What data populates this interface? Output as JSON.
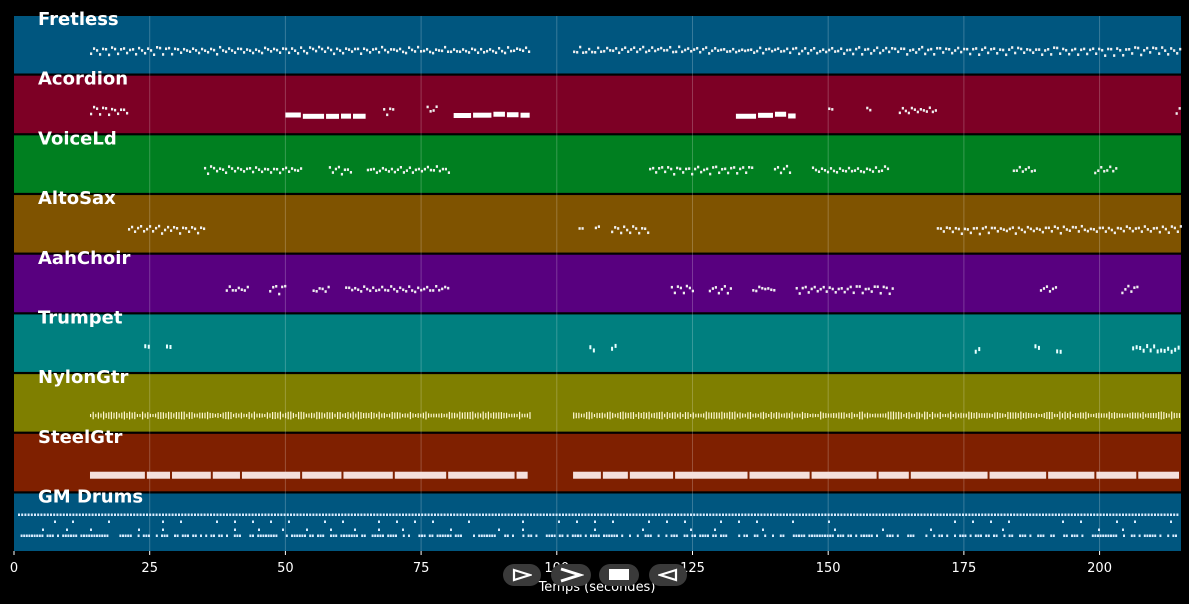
{
  "chart_data": {
    "type": "piano-roll",
    "xlabel": "Temps (secondes)",
    "xlim": [
      0,
      215
    ],
    "xticks": [
      0,
      25,
      50,
      75,
      100,
      125,
      150,
      175,
      200
    ],
    "grid": true,
    "tracks": [
      {
        "name": "Fretless",
        "color": "#00567f",
        "segments": [
          [
            14,
            95
          ],
          [
            103,
            215
          ]
        ],
        "style": "wavy"
      },
      {
        "name": "Acordion",
        "color": "#7d0025",
        "segments": [
          [
            14,
            21
          ],
          [
            50,
            65
          ],
          [
            68,
            70
          ],
          [
            76,
            78
          ],
          [
            81,
            95
          ],
          [
            133,
            144
          ],
          [
            150,
            151
          ],
          [
            157,
            158
          ],
          [
            163,
            170
          ],
          [
            214,
            215
          ]
        ],
        "style": "mixed"
      },
      {
        "name": "VoiceLd",
        "color": "#007f20",
        "segments": [
          [
            35,
            53
          ],
          [
            58,
            62
          ],
          [
            65,
            80
          ],
          [
            117,
            136
          ],
          [
            140,
            143
          ],
          [
            147,
            161
          ],
          [
            184,
            188
          ],
          [
            199,
            203
          ]
        ],
        "style": "wavy"
      },
      {
        "name": "AltoSax",
        "color": "#7f5300",
        "segments": [
          [
            21,
            35
          ],
          [
            104,
            105
          ],
          [
            107,
            108
          ],
          [
            110,
            117
          ],
          [
            170,
            215
          ]
        ],
        "style": "wavy"
      },
      {
        "name": "AahChoir",
        "color": "#58007f",
        "segments": [
          [
            39,
            43
          ],
          [
            47,
            50
          ],
          [
            55,
            58
          ],
          [
            61,
            80
          ],
          [
            121,
            125
          ],
          [
            128,
            132
          ],
          [
            136,
            140
          ],
          [
            144,
            162
          ],
          [
            189,
            192
          ],
          [
            204,
            207
          ]
        ],
        "style": "wavy"
      },
      {
        "name": "Trumpet",
        "color": "#007f7f",
        "segments": [
          [
            24,
            25
          ],
          [
            28,
            29
          ],
          [
            106,
            107
          ],
          [
            110,
            111
          ],
          [
            177,
            178
          ],
          [
            188,
            189
          ],
          [
            192,
            193
          ],
          [
            206,
            215
          ]
        ],
        "style": "dots"
      },
      {
        "name": "NylonGtr",
        "color": "#7f7f00",
        "segments": [
          [
            14,
            95
          ],
          [
            103,
            215
          ]
        ],
        "style": "dense"
      },
      {
        "name": "SteelGtr",
        "color": "#7f2000",
        "segments": [
          [
            14,
            95
          ],
          [
            103,
            215
          ]
        ],
        "style": "bars"
      },
      {
        "name": "GM Drums",
        "color": "#00567f",
        "segments": [
          [
            0,
            215
          ]
        ],
        "style": "drums"
      }
    ]
  },
  "controls": {
    "play": "play-outline",
    "fast_forward": "fast-forward",
    "stop": "stop",
    "rewind": "rewind"
  }
}
